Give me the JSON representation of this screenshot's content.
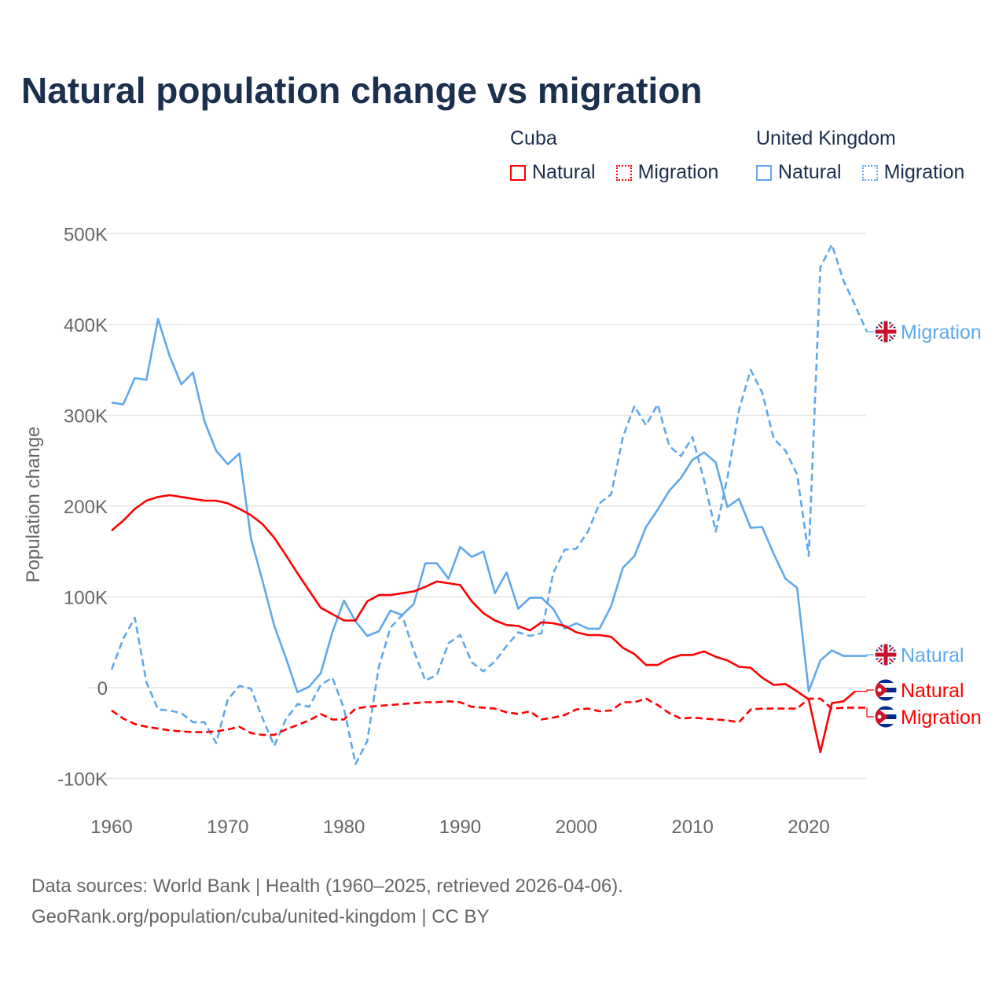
{
  "title": "Natural population change vs migration",
  "legend": {
    "groups": [
      {
        "name": "Cuba",
        "color": "#ff0000",
        "items": [
          "Natural",
          "Migration"
        ]
      },
      {
        "name": "United Kingdom",
        "color": "#5fa8ec",
        "items": [
          "Natural",
          "Migration"
        ]
      }
    ]
  },
  "source": {
    "line1": "Data sources: World Bank | Health (1960–2025, retrieved 2026-04-06).",
    "line2": "GeoRank.org/population/cuba/united-kingdom | CC BY"
  },
  "chart_data": {
    "type": "line",
    "title": "Natural population change vs migration",
    "xlabel": "",
    "ylabel": "Population change",
    "xlim": [
      1960,
      2025
    ],
    "ylim": [
      -100000,
      500000
    ],
    "x_ticks": [
      1960,
      1970,
      1980,
      1990,
      2000,
      2010,
      2020
    ],
    "x_tick_labels": [
      "1960",
      "1970",
      "1980",
      "1990",
      "2000",
      "2010",
      "2020"
    ],
    "y_ticks": [
      -100000,
      0,
      100000,
      200000,
      300000,
      400000,
      500000
    ],
    "y_tick_labels": [
      "-100K",
      "0",
      "100K",
      "200K",
      "300K",
      "400K",
      "500K"
    ],
    "grid": true,
    "legend_position": "top-right",
    "x_start": 1960,
    "unit": "thousands",
    "series": [
      {
        "name": "United Kingdom Natural",
        "end_label": "Natural",
        "country": "uk",
        "color": "#5fa8ec",
        "dashed": false,
        "values": [
          314,
          312,
          341,
          339,
          406,
          365,
          334,
          347,
          293,
          261,
          246,
          258,
          164,
          117,
          68,
          33,
          -5,
          1,
          16,
          61,
          96,
          73,
          57,
          62,
          85,
          80,
          92,
          137,
          137,
          120,
          155,
          144,
          150,
          104,
          127,
          87,
          99,
          99,
          87,
          65,
          71,
          65,
          65,
          90,
          132,
          145,
          177,
          196,
          217,
          231,
          251,
          259,
          248,
          199,
          208,
          176,
          177,
          147,
          120,
          110,
          -4,
          30,
          41,
          35,
          35,
          35
        ]
      },
      {
        "name": "United Kingdom Migration",
        "end_label": "Migration",
        "country": "uk",
        "color": "#5fa8ec",
        "dashed": true,
        "values": [
          20,
          54,
          77,
          6,
          -24,
          -25,
          -28,
          -38,
          -38,
          -61,
          -13,
          2,
          -1,
          -34,
          -64,
          -35,
          -18,
          -21,
          3,
          11,
          -23,
          -84,
          -59,
          23,
          66,
          80,
          41,
          8,
          14,
          49,
          58,
          28,
          18,
          29,
          46,
          61,
          57,
          60,
          126,
          152,
          153,
          172,
          203,
          213,
          276,
          310,
          289,
          312,
          266,
          255,
          276,
          228,
          172,
          231,
          306,
          350,
          325,
          274,
          261,
          235,
          145,
          463,
          488,
          448,
          421,
          392
        ]
      },
      {
        "name": "Cuba Natural",
        "end_label": "Natural",
        "country": "cuba",
        "color": "#ff0000",
        "dashed": false,
        "values": [
          173,
          184,
          197,
          206,
          210,
          212,
          210,
          208,
          206,
          206,
          203,
          197,
          190,
          180,
          165,
          146,
          126,
          107,
          88,
          81,
          74,
          74,
          95,
          102,
          102,
          104,
          106,
          111,
          117,
          115,
          113,
          95,
          82,
          74,
          69,
          68,
          63,
          72,
          71,
          68,
          61,
          58,
          58,
          56,
          44,
          37,
          25,
          25,
          32,
          36,
          36,
          40,
          34,
          30,
          23,
          22,
          11,
          3,
          4,
          -4,
          -13,
          -71,
          -17,
          -15,
          -4
        ]
      },
      {
        "name": "Cuba Migration",
        "end_label": "Migration",
        "country": "cuba",
        "color": "#ff0000",
        "dashed": true,
        "values": [
          -25,
          -34,
          -40,
          -43,
          -45,
          -47,
          -48,
          -49,
          -49,
          -48,
          -46,
          -43,
          -50,
          -52,
          -52,
          -46,
          -41,
          -36,
          -29,
          -35,
          -35,
          -23,
          -21,
          -20,
          -19,
          -18,
          -17,
          -16,
          -16,
          -15,
          -16,
          -21,
          -22,
          -23,
          -27,
          -29,
          -26,
          -35,
          -33,
          -30,
          -24,
          -23,
          -26,
          -25,
          -16,
          -16,
          -12,
          -19,
          -28,
          -34,
          -33,
          -34,
          -35,
          -36,
          -38,
          -24,
          -23,
          -23,
          -23,
          -23,
          -12,
          -12,
          -23,
          -22,
          -22,
          -22
        ]
      }
    ]
  }
}
